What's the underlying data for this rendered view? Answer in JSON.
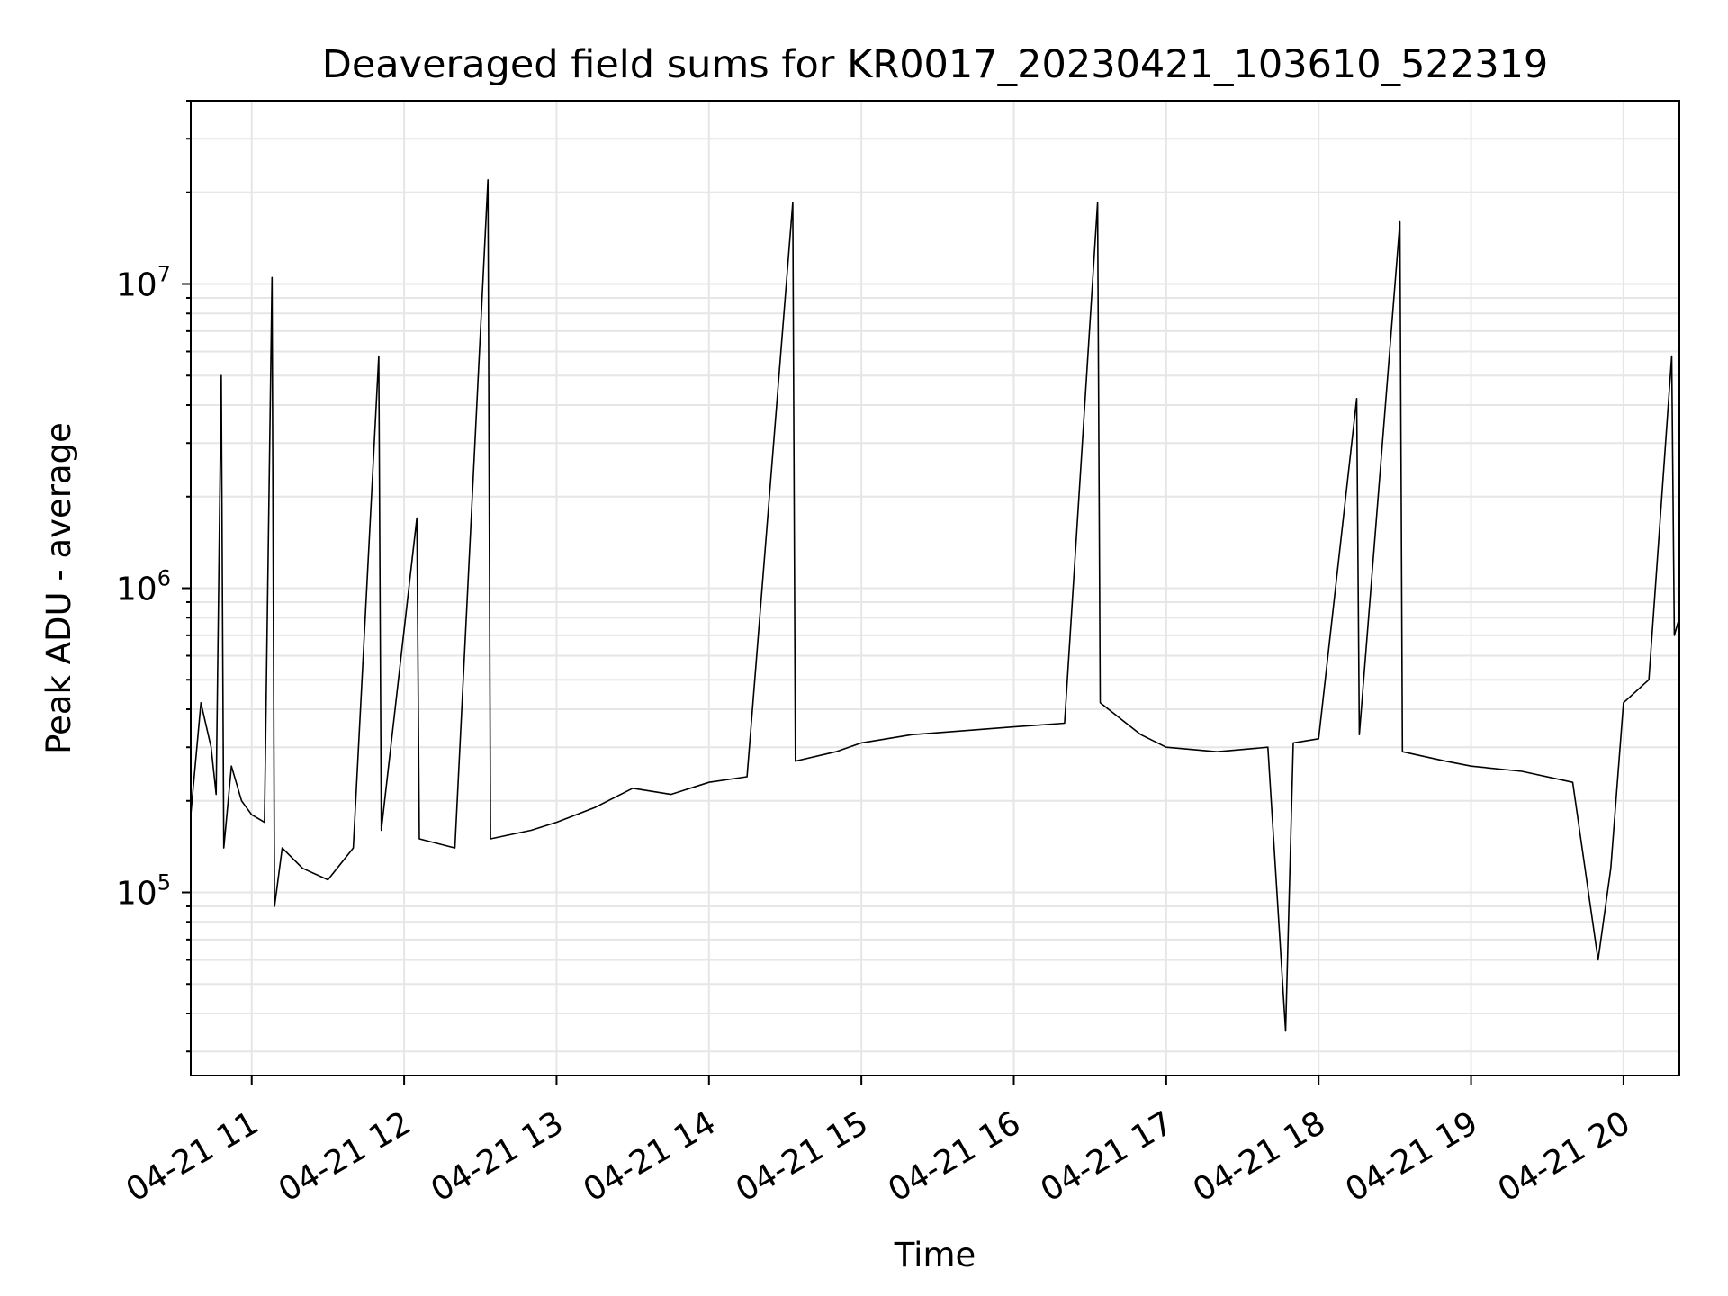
{
  "chart_data": {
    "type": "line",
    "title": "Deaveraged field sums for KR0017_20230421_103610_522319",
    "xlabel": "Time",
    "ylabel": "Peak ADU - average",
    "yscale": "log",
    "ylim": [
      25000,
      40000000
    ],
    "xlim": [
      "2023-04-21 10:36",
      "2023-04-21 20:22"
    ],
    "grid": true,
    "x_ticks": [
      {
        "label": "04-21 11",
        "value": "2023-04-21 11:00"
      },
      {
        "label": "04-21 12",
        "value": "2023-04-21 12:00"
      },
      {
        "label": "04-21 13",
        "value": "2023-04-21 13:00"
      },
      {
        "label": "04-21 14",
        "value": "2023-04-21 14:00"
      },
      {
        "label": "04-21 15",
        "value": "2023-04-21 15:00"
      },
      {
        "label": "04-21 16",
        "value": "2023-04-21 16:00"
      },
      {
        "label": "04-21 17",
        "value": "2023-04-21 17:00"
      },
      {
        "label": "04-21 18",
        "value": "2023-04-21 18:00"
      },
      {
        "label": "04-21 19",
        "value": "2023-04-21 19:00"
      },
      {
        "label": "04-21 20",
        "value": "2023-04-21 20:00"
      }
    ],
    "y_ticks": [
      {
        "base": "10",
        "exp": "5",
        "value": 100000
      },
      {
        "base": "10",
        "exp": "6",
        "value": 1000000
      },
      {
        "base": "10",
        "exp": "7",
        "value": 10000000
      }
    ],
    "series": [
      {
        "color": "#000000",
        "points": [
          [
            "2023-04-21 10:36",
            180000
          ],
          [
            "2023-04-21 10:40",
            420000
          ],
          [
            "2023-04-21 10:44",
            300000
          ],
          [
            "2023-04-21 10:46",
            210000
          ],
          [
            "2023-04-21 10:48",
            5000000
          ],
          [
            "2023-04-21 10:49",
            140000
          ],
          [
            "2023-04-21 10:52",
            260000
          ],
          [
            "2023-04-21 10:56",
            200000
          ],
          [
            "2023-04-21 11:00",
            180000
          ],
          [
            "2023-04-21 11:05",
            170000
          ],
          [
            "2023-04-21 11:08",
            10500000
          ],
          [
            "2023-04-21 11:09",
            90000
          ],
          [
            "2023-04-21 11:12",
            140000
          ],
          [
            "2023-04-21 11:20",
            120000
          ],
          [
            "2023-04-21 11:30",
            110000
          ],
          [
            "2023-04-21 11:40",
            140000
          ],
          [
            "2023-04-21 11:50",
            5800000
          ],
          [
            "2023-04-21 11:51",
            160000
          ],
          [
            "2023-04-21 12:05",
            1700000
          ],
          [
            "2023-04-21 12:06",
            150000
          ],
          [
            "2023-04-21 12:20",
            140000
          ],
          [
            "2023-04-21 12:33",
            22000000
          ],
          [
            "2023-04-21 12:34",
            150000
          ],
          [
            "2023-04-21 12:50",
            160000
          ],
          [
            "2023-04-21 13:00",
            170000
          ],
          [
            "2023-04-21 13:15",
            190000
          ],
          [
            "2023-04-21 13:30",
            220000
          ],
          [
            "2023-04-21 13:45",
            210000
          ],
          [
            "2023-04-21 14:00",
            230000
          ],
          [
            "2023-04-21 14:15",
            240000
          ],
          [
            "2023-04-21 14:33",
            18500000
          ],
          [
            "2023-04-21 14:34",
            270000
          ],
          [
            "2023-04-21 14:50",
            290000
          ],
          [
            "2023-04-21 15:00",
            310000
          ],
          [
            "2023-04-21 15:20",
            330000
          ],
          [
            "2023-04-21 15:40",
            340000
          ],
          [
            "2023-04-21 16:00",
            350000
          ],
          [
            "2023-04-21 16:20",
            360000
          ],
          [
            "2023-04-21 16:33",
            18500000
          ],
          [
            "2023-04-21 16:34",
            420000
          ],
          [
            "2023-04-21 16:50",
            330000
          ],
          [
            "2023-04-21 17:00",
            300000
          ],
          [
            "2023-04-21 17:20",
            290000
          ],
          [
            "2023-04-21 17:40",
            300000
          ],
          [
            "2023-04-21 17:47",
            35000
          ],
          [
            "2023-04-21 17:50",
            310000
          ],
          [
            "2023-04-21 18:00",
            320000
          ],
          [
            "2023-04-21 18:15",
            4200000
          ],
          [
            "2023-04-21 18:16",
            330000
          ],
          [
            "2023-04-21 18:32",
            16000000
          ],
          [
            "2023-04-21 18:33",
            290000
          ],
          [
            "2023-04-21 18:50",
            270000
          ],
          [
            "2023-04-21 19:00",
            260000
          ],
          [
            "2023-04-21 19:20",
            250000
          ],
          [
            "2023-04-21 19:40",
            230000
          ],
          [
            "2023-04-21 19:50",
            60000
          ],
          [
            "2023-04-21 19:55",
            120000
          ],
          [
            "2023-04-21 20:00",
            420000
          ],
          [
            "2023-04-21 20:10",
            500000
          ],
          [
            "2023-04-21 20:19",
            5800000
          ],
          [
            "2023-04-21 20:20",
            700000
          ],
          [
            "2023-04-21 20:22",
            800000
          ]
        ]
      }
    ]
  }
}
